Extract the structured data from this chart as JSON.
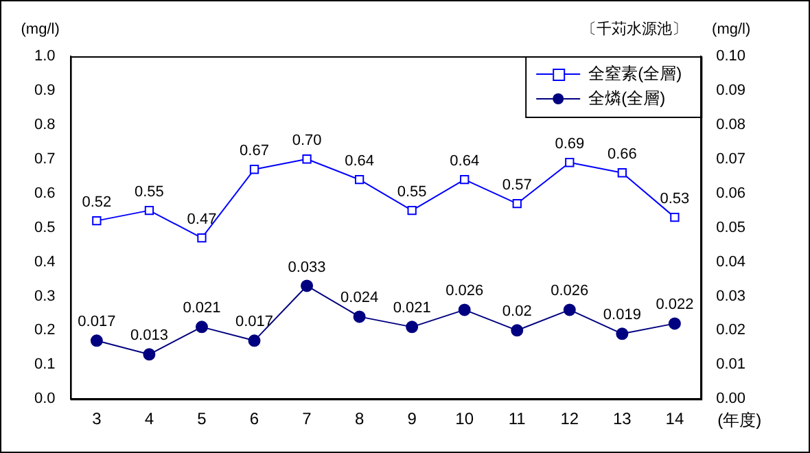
{
  "chart_data": {
    "type": "line",
    "annotations": [
      "〔千苅水源池〕"
    ],
    "ylabel": "(mg/l)",
    "y2label": "(mg/l)",
    "xlabel": "(年度)",
    "categories": [
      "3",
      "4",
      "5",
      "6",
      "7",
      "8",
      "9",
      "10",
      "11",
      "12",
      "13",
      "14"
    ],
    "series": [
      {
        "name": "全窒素(全層)",
        "color": "#0000ff",
        "marker": "square",
        "values": [
          0.52,
          0.55,
          0.47,
          0.67,
          0.7,
          0.64,
          0.55,
          0.64,
          0.57,
          0.69,
          0.66,
          0.53
        ],
        "value_labels": [
          "0.52",
          "0.55",
          "0.47",
          "0.67",
          "0.70",
          "0.64",
          "0.55",
          "0.64",
          "0.57",
          "0.69",
          "0.66",
          "0.53"
        ]
      },
      {
        "name": "全燐(全層)",
        "color": "#000080",
        "marker": "circle",
        "axis": "y2",
        "values": [
          0.017,
          0.013,
          0.021,
          0.017,
          0.033,
          0.024,
          0.021,
          0.026,
          0.02,
          0.026,
          0.019,
          0.022
        ],
        "value_labels": [
          "0.017",
          "0.013",
          "0.021",
          "0.017",
          "0.033",
          "0.024",
          "0.021",
          "0.026",
          "0.02",
          "0.026",
          "0.019",
          "0.022"
        ]
      }
    ],
    "ylim": [
      0,
      1
    ],
    "yticks": [
      {
        "value": 0,
        "label": "0.0"
      },
      {
        "value": 0.1,
        "label": "0.1"
      },
      {
        "value": 0.2,
        "label": "0.2"
      },
      {
        "value": 0.3,
        "label": "0.3"
      },
      {
        "value": 0.4,
        "label": "0.4"
      },
      {
        "value": 0.5,
        "label": "0.5"
      },
      {
        "value": 0.6,
        "label": "0.6"
      },
      {
        "value": 0.7,
        "label": "0.7"
      },
      {
        "value": 0.8,
        "label": "0.8"
      },
      {
        "value": 0.9,
        "label": "0.9"
      },
      {
        "value": 1,
        "label": "1.0"
      }
    ],
    "y2lim": [
      0,
      0.1
    ],
    "y2ticks": [
      {
        "value": 0,
        "label": "0.00"
      },
      {
        "value": 0.01,
        "label": "0.01"
      },
      {
        "value": 0.02,
        "label": "0.02"
      },
      {
        "value": 0.03,
        "label": "0.03"
      },
      {
        "value": 0.04,
        "label": "0.04"
      },
      {
        "value": 0.05,
        "label": "0.05"
      },
      {
        "value": 0.06,
        "label": "0.06"
      },
      {
        "value": 0.07,
        "label": "0.07"
      },
      {
        "value": 0.08,
        "label": "0.08"
      },
      {
        "value": 0.09,
        "label": "0.09"
      },
      {
        "value": 0.1,
        "label": "0.10"
      }
    ],
    "grid": false,
    "legend": "top right",
    "line_style": "solid"
  }
}
